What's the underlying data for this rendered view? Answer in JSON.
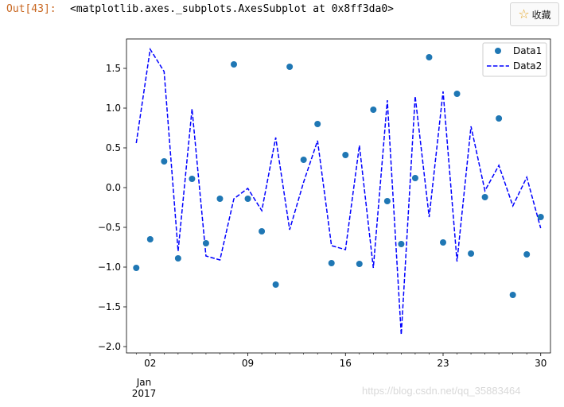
{
  "cell": {
    "prompt": "Out[43]:",
    "output_text": "<matplotlib.axes._subplots.AxesSubplot at 0x8ff3da0>"
  },
  "toolbar": {
    "favorite_label": "收藏",
    "favorite_icon": "star-outline-icon"
  },
  "watermark": "https://blog.csdn.net/qq_35883464",
  "chart_data": {
    "type": "line",
    "x_date_start": "2017-01-01",
    "x_tick_labels": [
      "02",
      "09",
      "16",
      "23",
      "30"
    ],
    "x_tick_days": [
      2,
      9,
      16,
      23,
      30
    ],
    "x_sub_label": [
      "Jan",
      "2017"
    ],
    "xlim": [
      0.3,
      30.7
    ],
    "ylim": [
      -2.08,
      1.87
    ],
    "y_ticks": [
      1.5,
      1.0,
      0.5,
      0.0,
      -0.5,
      -1.0,
      -1.5,
      -2.0
    ],
    "y_tick_labels": [
      "1.5",
      "1.0",
      "0.5",
      "0.0",
      "−0.5",
      "−1.0",
      "−1.5",
      "−2.0"
    ],
    "legend_position": "top-right",
    "series": [
      {
        "name": "Data1",
        "style": "markers",
        "color": "#1f77b4",
        "x": [
          1,
          2,
          3,
          4,
          5,
          6,
          7,
          8,
          9,
          10,
          11,
          12,
          13,
          14,
          15,
          16,
          17,
          18,
          19,
          20,
          21,
          22,
          23,
          24,
          25,
          26,
          27,
          28,
          29,
          30
        ],
        "y": [
          -1.01,
          -0.65,
          0.33,
          -0.89,
          0.11,
          -0.7,
          -0.14,
          1.55,
          -0.14,
          -0.55,
          -1.22,
          1.52,
          0.35,
          0.8,
          -0.95,
          0.41,
          -0.96,
          0.98,
          -0.17,
          -0.71,
          0.12,
          1.64,
          -0.69,
          1.18,
          -0.83,
          -0.12,
          0.87,
          -1.35,
          -0.84,
          -0.37
        ]
      },
      {
        "name": "Data2",
        "style": "dashed-line",
        "color": "#0000ff",
        "x": [
          1,
          2,
          3,
          4,
          5,
          6,
          7,
          8,
          9,
          10,
          11,
          12,
          13,
          14,
          15,
          16,
          17,
          18,
          19,
          20,
          21,
          22,
          23,
          24,
          25,
          26,
          27,
          28,
          29,
          30
        ],
        "y": [
          0.56,
          1.74,
          1.46,
          -0.8,
          0.99,
          -0.86,
          -0.91,
          -0.14,
          -0.01,
          -0.29,
          0.63,
          -0.53,
          0.07,
          0.59,
          -0.73,
          -0.78,
          0.53,
          -1.01,
          1.1,
          -1.85,
          1.15,
          -0.37,
          1.21,
          -0.93,
          0.77,
          -0.04,
          0.28,
          -0.23,
          0.13,
          -0.51
        ]
      }
    ]
  }
}
